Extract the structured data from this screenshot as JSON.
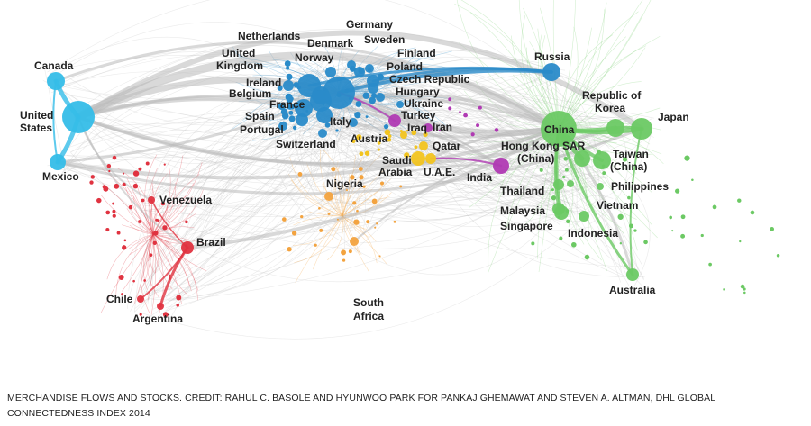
{
  "colors": {
    "north_america": "#35bde8",
    "europe": "#2a8bc9",
    "europe_dark": "#1f6fad",
    "latin_america": "#e03340",
    "africa": "#f3a33f",
    "middle_east": "#f2c420",
    "south_asia": "#b03ab3",
    "asia": "#6cc964",
    "grey_flow": "#c4c4c4"
  },
  "countries": [
    {
      "id": "canada",
      "name": "Canada",
      "region": "north_america"
    },
    {
      "id": "united-states",
      "name": "United States",
      "region": "north_america"
    },
    {
      "id": "mexico",
      "name": "Mexico",
      "region": "north_america"
    },
    {
      "id": "venezuela",
      "name": "Venezuela",
      "region": "latin_america"
    },
    {
      "id": "brazil",
      "name": "Brazil",
      "region": "latin_america"
    },
    {
      "id": "chile",
      "name": "Chile",
      "region": "latin_america"
    },
    {
      "id": "argentina",
      "name": "Argentina",
      "region": "latin_america"
    },
    {
      "id": "netherlands",
      "name": "Netherlands",
      "region": "europe"
    },
    {
      "id": "germany",
      "name": "Germany",
      "region": "europe"
    },
    {
      "id": "denmark",
      "name": "Denmark",
      "region": "europe"
    },
    {
      "id": "sweden",
      "name": "Sweden",
      "region": "europe"
    },
    {
      "id": "united-kingdom",
      "name": "United Kingdom",
      "region": "europe"
    },
    {
      "id": "norway",
      "name": "Norway",
      "region": "europe"
    },
    {
      "id": "finland",
      "name": "Finland",
      "region": "europe"
    },
    {
      "id": "poland",
      "name": "Poland",
      "region": "europe"
    },
    {
      "id": "ireland",
      "name": "Ireland",
      "region": "europe"
    },
    {
      "id": "czech-republic",
      "name": "Czech Republic",
      "region": "europe"
    },
    {
      "id": "belgium",
      "name": "Belgium",
      "region": "europe"
    },
    {
      "id": "hungary",
      "name": "Hungary",
      "region": "europe"
    },
    {
      "id": "france",
      "name": "France",
      "region": "europe"
    },
    {
      "id": "ukraine",
      "name": "Ukraine",
      "region": "europe"
    },
    {
      "id": "spain",
      "name": "Spain",
      "region": "europe"
    },
    {
      "id": "turkey",
      "name": "Turkey",
      "region": "south_asia"
    },
    {
      "id": "italy",
      "name": "Italy",
      "region": "europe"
    },
    {
      "id": "portugal",
      "name": "Portugal",
      "region": "europe"
    },
    {
      "id": "iraq",
      "name": "Iraq",
      "region": "middle_east"
    },
    {
      "id": "iran",
      "name": "Iran",
      "region": "south_asia"
    },
    {
      "id": "austria",
      "name": "Austria",
      "region": "europe"
    },
    {
      "id": "switzerland",
      "name": "Switzerland",
      "region": "europe"
    },
    {
      "id": "qatar",
      "name": "Qatar",
      "region": "middle_east"
    },
    {
      "id": "saudi-arabia",
      "name": "Saudi Arabia",
      "region": "middle_east"
    },
    {
      "id": "uae",
      "name": "U.A.E.",
      "region": "middle_east"
    },
    {
      "id": "russia",
      "name": "Russia",
      "region": "europe"
    },
    {
      "id": "nigeria",
      "name": "Nigeria",
      "region": "africa"
    },
    {
      "id": "south-africa",
      "name": "South Africa",
      "region": "africa"
    },
    {
      "id": "india",
      "name": "India",
      "region": "south_asia"
    },
    {
      "id": "china",
      "name": "China",
      "region": "asia"
    },
    {
      "id": "republic-of-korea",
      "name": "Republic of Korea",
      "region": "asia"
    },
    {
      "id": "japan",
      "name": "Japan",
      "region": "asia"
    },
    {
      "id": "hong-kong",
      "name": "Hong Kong SAR (China)",
      "region": "asia"
    },
    {
      "id": "taiwan",
      "name": "Taiwan (China)",
      "region": "asia"
    },
    {
      "id": "thailand",
      "name": "Thailand",
      "region": "asia"
    },
    {
      "id": "philippines",
      "name": "Philippines",
      "region": "asia"
    },
    {
      "id": "malaysia",
      "name": "Malaysia",
      "region": "asia"
    },
    {
      "id": "vietnam",
      "name": "Vietnam",
      "region": "asia"
    },
    {
      "id": "singapore",
      "name": "Singapore",
      "region": "asia"
    },
    {
      "id": "indonesia",
      "name": "Indonesia",
      "region": "asia"
    },
    {
      "id": "australia",
      "name": "Australia",
      "region": "asia"
    }
  ],
  "caption": "MERCHANDISE FLOWS AND STOCKS. CREDIT: RAHUL C. BASOLE AND HYUNWOO PARK FOR PANKAJ GHEMAWAT AND STEVEN A. ALTMAN, DHL GLOBAL CONNECTEDNESS INDEX 2014"
}
